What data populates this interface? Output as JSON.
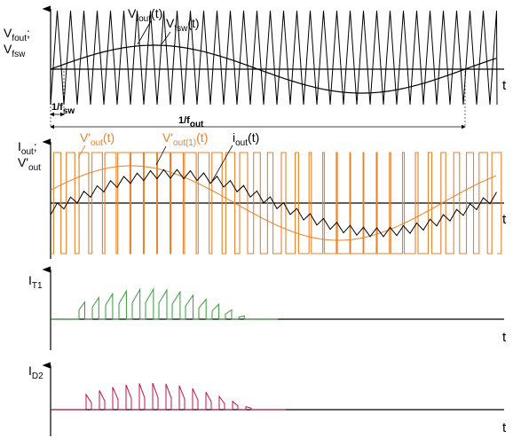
{
  "colors": {
    "axis": "#000000",
    "sine": "#000000",
    "triangle": "#000000",
    "orange": "#e8822a",
    "green": "#3a9a3a",
    "crimson": "#c0124a"
  },
  "panel1": {
    "ylabel_main_1": "V",
    "ylabel_sub_1": "fout",
    "ylabel_sep": ";",
    "ylabel_main_2": "V",
    "ylabel_sub_2": "fsw",
    "vfout_main": "V",
    "vfout_sub": "fout",
    "vfout_arg": "(t)",
    "vfsw_main": "V",
    "vfsw_sub": "fsw",
    "vfsw_arg": "(t)",
    "t_label": "t",
    "fsw_label_main": "1/f",
    "fsw_label_sub": "sw",
    "fout_label_main": "1/f",
    "fout_label_sub": "out"
  },
  "panel2": {
    "ylabel_main_1": "I",
    "ylabel_sub_1": "out",
    "ylabel_sep": ";",
    "ylabel_main_2": "V'",
    "ylabel_sub_2": "out",
    "vout_main": "V'",
    "vout_sub": "out",
    "vout_arg": "(t)",
    "vout1_main": "V'",
    "vout1_sub": "out(1)",
    "vout1_arg": "(t)",
    "iout_main": "i",
    "iout_sub": "out",
    "iout_arg": "(t)",
    "t_label": "t"
  },
  "panel3": {
    "ylabel_main": "I",
    "ylabel_sub": "T1",
    "t_label": "t"
  },
  "panel4": {
    "ylabel_main": "I",
    "ylabel_sub": "D2",
    "t_label": "t"
  }
}
